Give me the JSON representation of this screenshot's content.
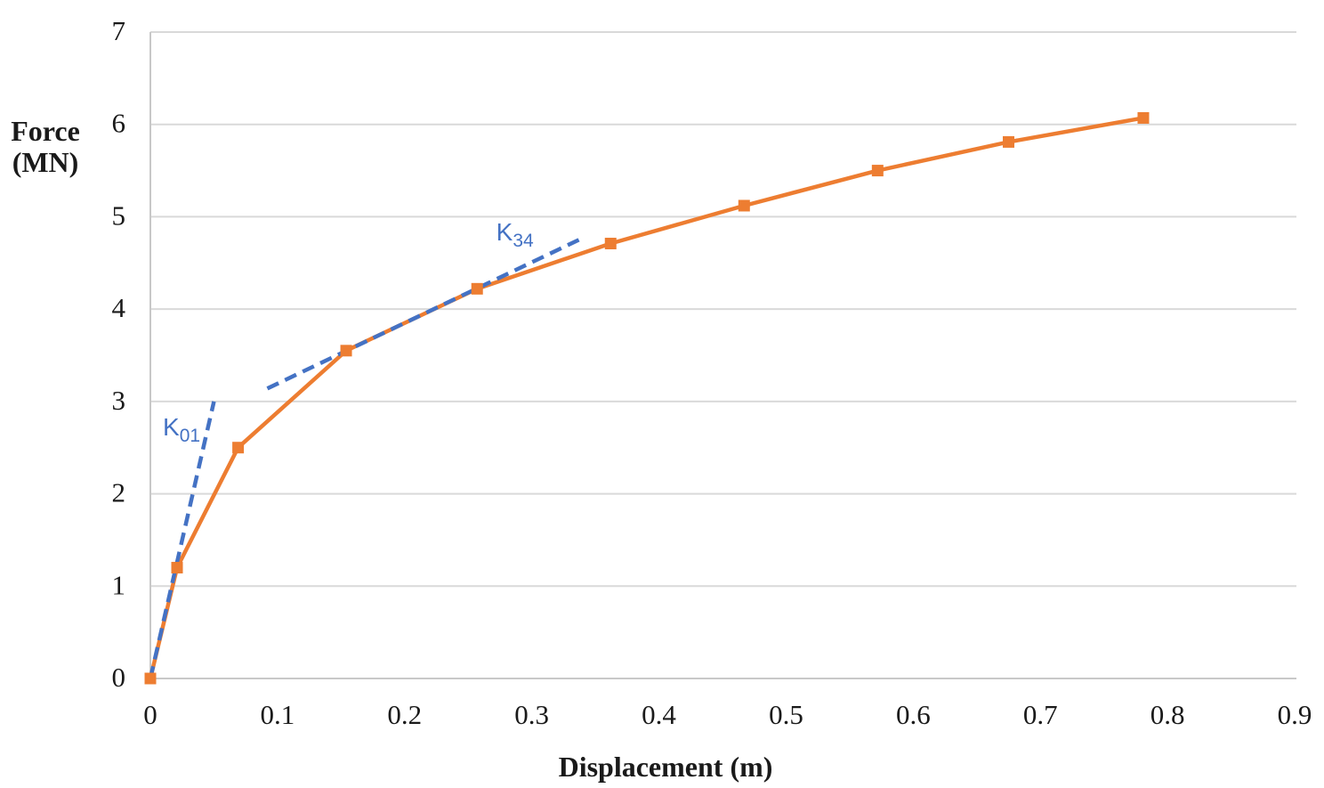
{
  "chart_data": {
    "type": "line",
    "title": "",
    "xlabel": "Displacement (m)",
    "ylabel_lines": [
      "Force",
      "(MN)"
    ],
    "xlim": [
      0,
      0.9
    ],
    "ylim": [
      0,
      7
    ],
    "x_tick_values": [
      0,
      0.1,
      0.2,
      0.3,
      0.4,
      0.5,
      0.6,
      0.7,
      0.8,
      0.9
    ],
    "x_tick_labels": [
      "0",
      "0.1",
      "0.2",
      "0.3",
      "0.4",
      "0.5",
      "0.6",
      "0.7",
      "0.8",
      "0.9"
    ],
    "y_tick_values": [
      0,
      1,
      2,
      3,
      4,
      5,
      6,
      7
    ],
    "y_tick_labels": [
      "0",
      "1",
      "2",
      "3",
      "4",
      "5",
      "6",
      "7"
    ],
    "grid": "horizontal-only",
    "legend": "none",
    "series": [
      {
        "name": "force-displacement-curve",
        "style": "solid-line-with-square-markers",
        "color": "#ED7D31",
        "x": [
          0,
          0.021,
          0.069,
          0.154,
          0.257,
          0.362,
          0.467,
          0.572,
          0.675,
          0.781
        ],
        "y": [
          0,
          1.2,
          2.5,
          3.55,
          4.22,
          4.71,
          5.12,
          5.5,
          5.81,
          6.07
        ]
      },
      {
        "name": "K01-tangent-line",
        "style": "dashed-line",
        "color": "#4472C4",
        "x": [
          0,
          0.05
        ],
        "y": [
          0,
          3.0
        ]
      },
      {
        "name": "K34-tangent-line",
        "style": "dashed-line",
        "color": "#4472C4",
        "x": [
          0.092,
          0.337
        ],
        "y": [
          3.14,
          4.75
        ]
      }
    ],
    "annotations": [
      {
        "id": "k01",
        "base": "K",
        "sub": "01",
        "x": 0.0098,
        "y": 2.85,
        "color": "#4472C4"
      },
      {
        "id": "k34",
        "base": "K",
        "sub": "34",
        "x": 0.272,
        "y": 4.97,
        "color": "#4472C4"
      }
    ],
    "colors": {
      "curve": "#ED7D31",
      "tangent": "#4472C4",
      "gridline": "#D9D9D9",
      "axis_line": "#C8C8C8",
      "text": "#1A1A1A"
    }
  }
}
